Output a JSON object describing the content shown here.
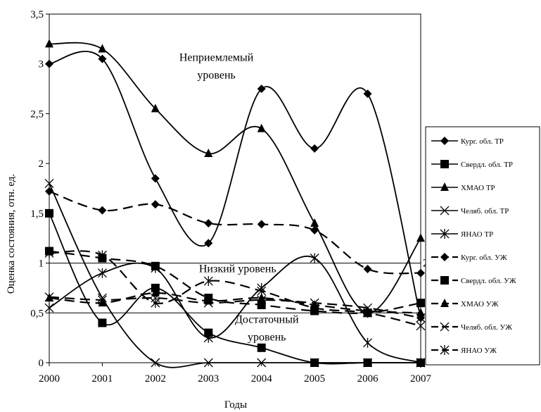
{
  "chart_data": {
    "type": "line",
    "title": "",
    "xlabel": "Годы",
    "ylabel": "Оценка состояния, отн. ед.",
    "x": [
      2000,
      2001,
      2002,
      2003,
      2004,
      2005,
      2006,
      2007
    ],
    "x_tick_labels": [
      "2000",
      "2001",
      "2002",
      "2003",
      "2004",
      "2005",
      "2006",
      "2007"
    ],
    "ylim": [
      0,
      3.5
    ],
    "y_ticks": [
      0,
      0.5,
      1,
      1.5,
      2,
      2.5,
      3,
      3.5
    ],
    "y_tick_labels": [
      "0",
      "0,5",
      "1",
      "1,5",
      "2",
      "2,5",
      "3",
      "3,5"
    ],
    "reference_lines": [
      0.5,
      1
    ],
    "grid": false,
    "legend_position": "right",
    "annotations": [
      {
        "lines": [
          "Неприемлемый",
          "уровень"
        ],
        "x": 2003.15,
        "y": 3.03
      },
      {
        "lines": [
          "Низкий уровень"
        ],
        "x": 2003.55,
        "y": 0.91
      },
      {
        "lines": [
          "Достаточный",
          "уровень"
        ],
        "x": 2004.1,
        "y": 0.4
      }
    ],
    "edge_label": "2",
    "series": [
      {
        "name": "Кург. обл. ТР",
        "marker": "diamond",
        "dash": "solid",
        "values": [
          3.0,
          3.05,
          1.85,
          1.2,
          2.75,
          2.15,
          2.7,
          0.45
        ]
      },
      {
        "name": "Свердл. обл. ТР",
        "marker": "square",
        "dash": "solid",
        "values": [
          1.5,
          0.4,
          0.75,
          0.3,
          0.15,
          0.0,
          0.0,
          0.0
        ]
      },
      {
        "name": "ХМАО ТР",
        "marker": "triangle",
        "dash": "solid",
        "values": [
          3.2,
          3.15,
          2.55,
          2.1,
          2.35,
          1.4,
          0.5,
          1.25
        ]
      },
      {
        "name": "Челяб. обл. ТР",
        "marker": "x",
        "dash": "solid",
        "values": [
          1.8,
          0.65,
          0.0,
          0.0,
          0.0,
          0.0,
          0.0,
          0.0
        ]
      },
      {
        "name": "ЯНАО ТР",
        "marker": "asterisk",
        "dash": "solid",
        "values": [
          0.55,
          0.9,
          0.95,
          0.25,
          0.75,
          1.05,
          0.2,
          0.0
        ]
      },
      {
        "name": "Кург. обл. УЖ",
        "marker": "diamond",
        "dash": "dashed",
        "values": [
          1.72,
          1.53,
          1.59,
          1.4,
          1.39,
          1.33,
          0.94,
          0.9
        ]
      },
      {
        "name": "Свердл. обл. УЖ",
        "marker": "square",
        "dash": "dashed",
        "values": [
          1.12,
          1.05,
          0.97,
          0.65,
          0.58,
          0.52,
          0.5,
          0.6
        ]
      },
      {
        "name": "ХМАО УЖ",
        "marker": "triangle",
        "dash": "dashed",
        "values": [
          0.65,
          0.6,
          0.7,
          0.62,
          0.65,
          0.58,
          0.52,
          0.5
        ]
      },
      {
        "name": "Челяб. обл. УЖ",
        "marker": "x",
        "dash": "dashed",
        "values": [
          0.66,
          0.63,
          0.65,
          0.6,
          0.63,
          0.6,
          0.55,
          0.45
        ]
      },
      {
        "name": "ЯНАО УЖ",
        "marker": "asterisk",
        "dash": "dashed",
        "values": [
          1.1,
          1.08,
          0.6,
          0.82,
          0.72,
          0.55,
          0.5,
          0.37
        ]
      }
    ]
  }
}
